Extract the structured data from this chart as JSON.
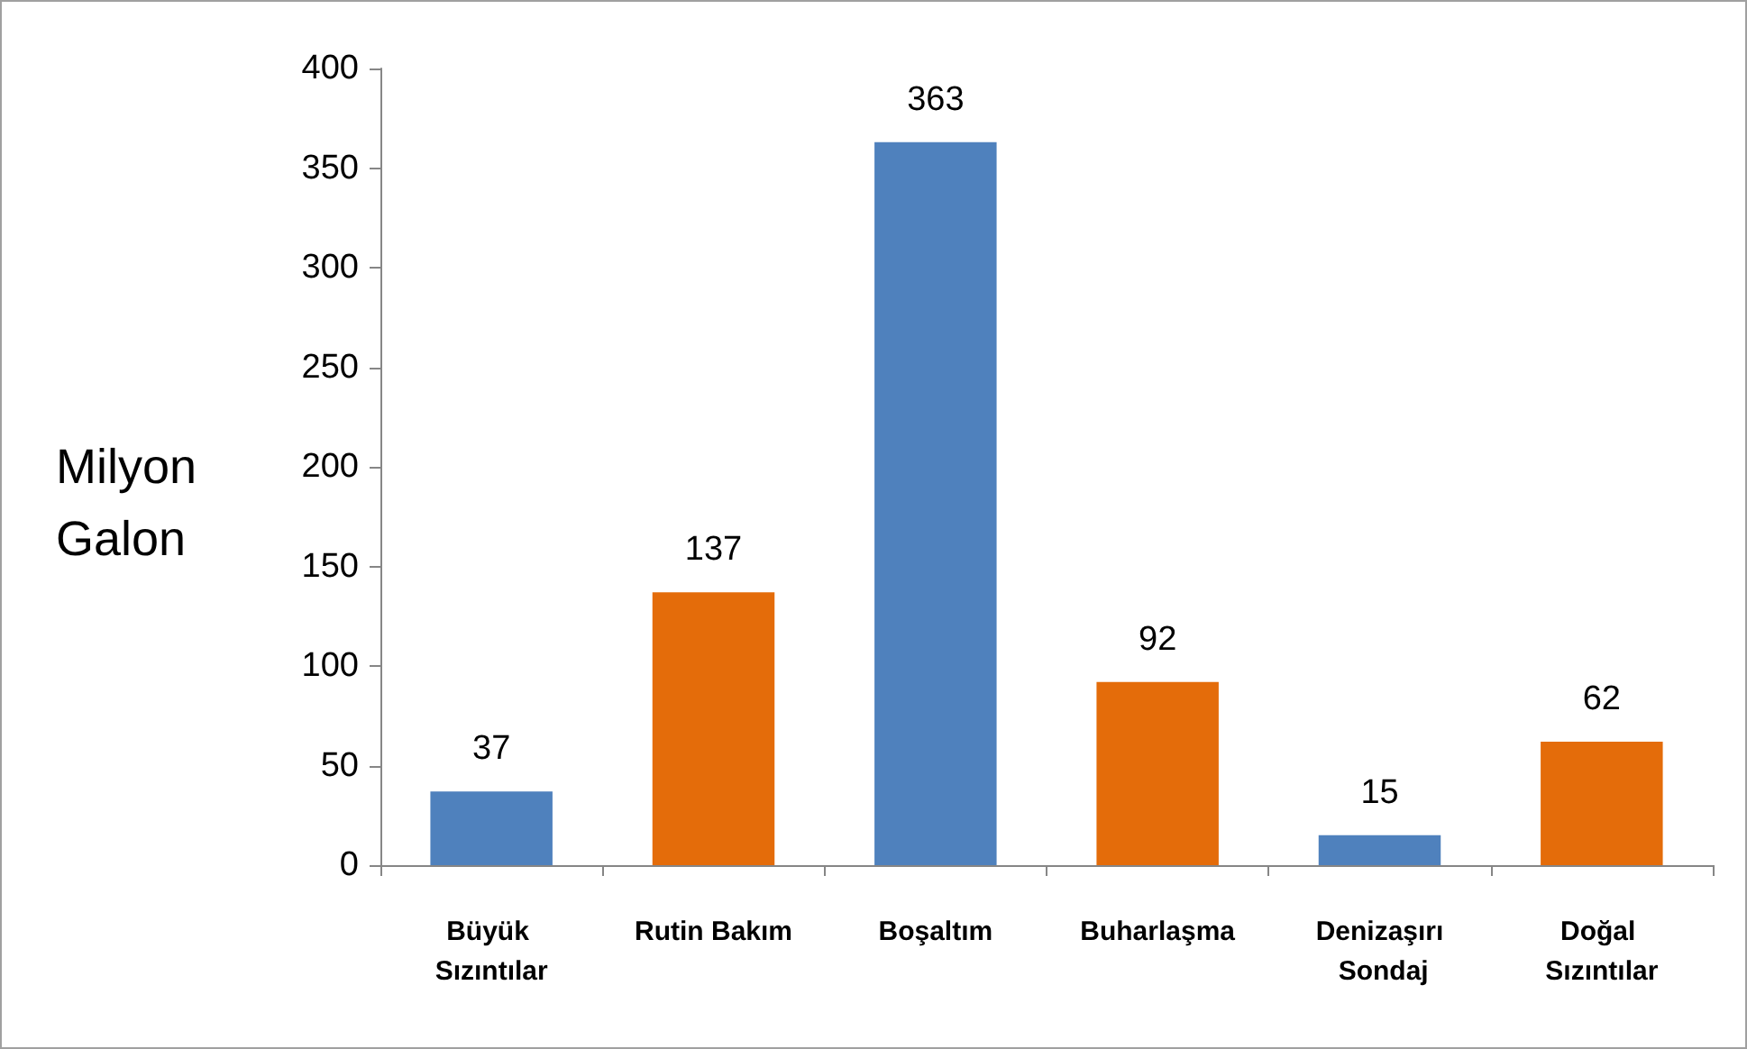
{
  "chart_data": {
    "type": "bar",
    "ylabel": "Milyon Galon",
    "categories": [
      "Büyük Sızıntılar",
      "Rutin Bakım",
      "Boşaltım",
      "Buharlaşma",
      "Denizaşırı Sondaj",
      "Doğal Sızıntılar"
    ],
    "values": [
      37,
      137,
      363,
      92,
      15,
      62
    ],
    "colors": [
      "#4f81bd",
      "#e46c0a",
      "#4f81bd",
      "#e46c0a",
      "#4f81bd",
      "#e46c0a"
    ],
    "ylim": [
      0,
      400
    ],
    "yticks": [
      0,
      50,
      100,
      150,
      200,
      250,
      300,
      350,
      400
    ],
    "grid": false,
    "data_labels": true
  }
}
